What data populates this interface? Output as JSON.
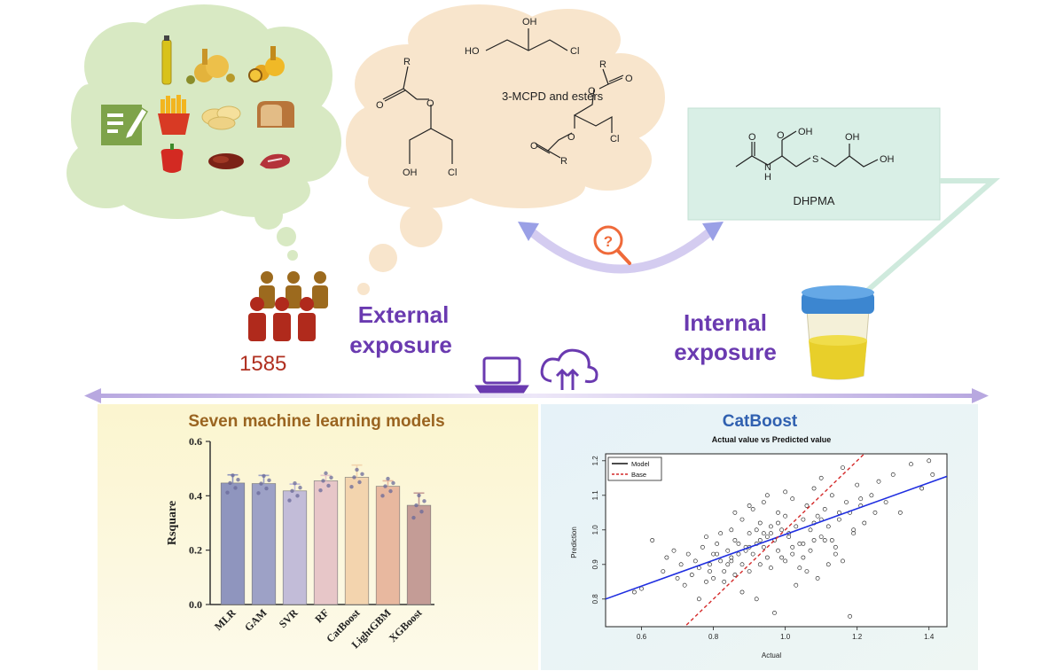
{
  "population": {
    "count": "1585"
  },
  "external": {
    "label_line1": "External",
    "label_line2": "exposure"
  },
  "internal": {
    "label_line1": "Internal",
    "label_line2": "exposure"
  },
  "chemicals": {
    "mcpd_label": "3-MCPD and esters",
    "dhpma_label": "DHPMA",
    "atoms": {
      "oh": "OH",
      "ho": "HO",
      "cl": "Cl",
      "r": "R",
      "o": "O",
      "s": "S",
      "n": "N",
      "h": "H"
    }
  },
  "icons": [
    "food-oil",
    "fries",
    "chips",
    "bread",
    "pepper",
    "meat",
    "notebook",
    "people",
    "question-magnifier",
    "laptop",
    "cloud-upload",
    "urine-cup"
  ],
  "colors": {
    "thought_cloud": "#d8e9c3",
    "chem_cloud": "#f8e5cc",
    "dhpma_box": "#d9efe6",
    "purple": "#6a3ab0",
    "orange_text": "#9a6420",
    "blue_title": "#3060b0",
    "red_count": "#b03020"
  },
  "left_panel": {
    "title": "Seven machine learning models",
    "chart_data": {
      "type": "bar",
      "categories": [
        "MLR",
        "GAM",
        "SVR",
        "RF",
        "CatBoost",
        "LightGBM",
        "XGBoost"
      ],
      "values": [
        0.447,
        0.445,
        0.418,
        0.455,
        0.468,
        0.435,
        0.365
      ],
      "errors": [
        0.03,
        0.03,
        0.025,
        0.02,
        0.045,
        0.02,
        0.045
      ],
      "colors": [
        "#8f95be",
        "#9da1c6",
        "#c2bcd8",
        "#e7c6c8",
        "#f3d4ae",
        "#e8b89f",
        "#c49c96"
      ],
      "title": "Seven machine learning models",
      "xlabel": "",
      "ylabel": "Rsquare",
      "ylim": [
        0,
        0.6
      ],
      "yticks": [
        "0.0",
        "0.2",
        "0.4",
        "0.6"
      ]
    }
  },
  "right_panel": {
    "title": "CatBoost",
    "chart_data": {
      "type": "scatter",
      "title": "Actual value vs Predicted value",
      "xlabel": "Actual",
      "ylabel": "Prediction",
      "xlim": [
        0.5,
        1.45
      ],
      "ylim": [
        0.72,
        1.22
      ],
      "xticks": [
        "0.6",
        "0.8",
        "1.0",
        "1.2",
        "1.4"
      ],
      "yticks": [
        "0.8",
        "0.9",
        "1.0",
        "1.1",
        "1.2"
      ],
      "legend": {
        "placement": "top-left",
        "entries": [
          "Model",
          "Base"
        ]
      },
      "series": [
        {
          "name": "Model",
          "kind": "line",
          "x": [
            0.5,
            1.45
          ],
          "y": [
            0.8,
            1.155
          ]
        },
        {
          "name": "Base",
          "kind": "dashed-line",
          "x": [
            0.7,
            1.23
          ],
          "y": [
            0.7,
            1.23
          ]
        }
      ],
      "points": {
        "x": [
          0.58,
          0.6,
          0.63,
          0.66,
          0.67,
          0.69,
          0.7,
          0.71,
          0.72,
          0.73,
          0.74,
          0.75,
          0.76,
          0.77,
          0.78,
          0.78,
          0.79,
          0.8,
          0.8,
          0.81,
          0.82,
          0.82,
          0.83,
          0.84,
          0.85,
          0.85,
          0.86,
          0.86,
          0.87,
          0.88,
          0.88,
          0.89,
          0.9,
          0.9,
          0.91,
          0.91,
          0.92,
          0.93,
          0.93,
          0.94,
          0.94,
          0.95,
          0.95,
          0.96,
          0.96,
          0.97,
          0.98,
          0.98,
          0.99,
          1.0,
          1.0,
          1.01,
          1.02,
          1.02,
          1.03,
          1.04,
          1.05,
          1.05,
          1.06,
          1.07,
          1.08,
          1.08,
          1.09,
          1.1,
          1.1,
          1.11,
          1.12,
          1.13,
          1.14,
          1.15,
          1.16,
          1.17,
          1.18,
          1.19,
          1.2,
          1.21,
          1.22,
          1.24,
          1.26,
          1.28,
          1.3,
          1.32,
          1.35,
          1.38,
          1.4,
          1.41,
          0.83,
          0.88,
          0.92,
          0.97,
          1.03,
          1.06,
          1.09,
          1.12,
          1.18,
          1.0,
          0.95,
          0.9,
          0.86,
          1.14,
          0.84,
          0.89,
          0.93,
          0.99,
          1.04,
          1.07,
          1.11,
          1.16,
          0.76,
          0.81,
          0.87,
          0.92,
          0.96,
          1.02,
          1.08,
          1.13,
          1.19,
          1.25,
          0.79,
          0.85,
          0.9,
          0.94,
          0.98,
          1.01,
          1.05,
          1.1,
          1.15,
          1.21
        ],
        "y": [
          0.82,
          0.83,
          0.97,
          0.88,
          0.92,
          0.94,
          0.86,
          0.9,
          0.84,
          0.93,
          0.87,
          0.91,
          0.89,
          0.95,
          0.85,
          0.98,
          0.9,
          0.93,
          0.86,
          0.96,
          0.91,
          0.99,
          0.88,
          0.94,
          0.92,
          1.0,
          0.87,
          0.97,
          0.93,
          0.9,
          1.03,
          0.95,
          0.88,
          0.99,
          0.93,
          1.06,
          0.96,
          0.9,
          1.02,
          0.95,
          1.08,
          0.92,
          0.98,
          1.01,
          0.89,
          0.97,
          0.94,
          1.05,
          1.0,
          0.91,
          1.04,
          0.98,
          0.95,
          1.09,
          1.01,
          0.96,
          1.03,
          0.92,
          1.07,
          1.0,
          0.97,
          1.12,
          1.04,
          0.98,
          1.15,
          1.06,
          1.01,
          1.1,
          0.95,
          1.03,
          1.18,
          1.08,
          1.05,
          0.99,
          1.13,
          1.07,
          1.02,
          1.1,
          1.14,
          1.08,
          1.16,
          1.05,
          1.19,
          1.12,
          1.2,
          1.16,
          0.85,
          0.82,
          0.8,
          0.76,
          0.84,
          0.88,
          0.86,
          0.9,
          0.75,
          1.11,
          1.1,
          1.07,
          1.05,
          0.93,
          0.9,
          0.94,
          0.97,
          0.92,
          0.89,
          0.94,
          0.97,
          0.91,
          0.8,
          0.93,
          0.96,
          1.0,
          0.99,
          0.93,
          1.02,
          0.97,
          1.0,
          1.05,
          0.88,
          0.91,
          0.95,
          0.99,
          1.02,
          0.99,
          0.96,
          1.03,
          1.05,
          1.09
        ]
      }
    }
  }
}
